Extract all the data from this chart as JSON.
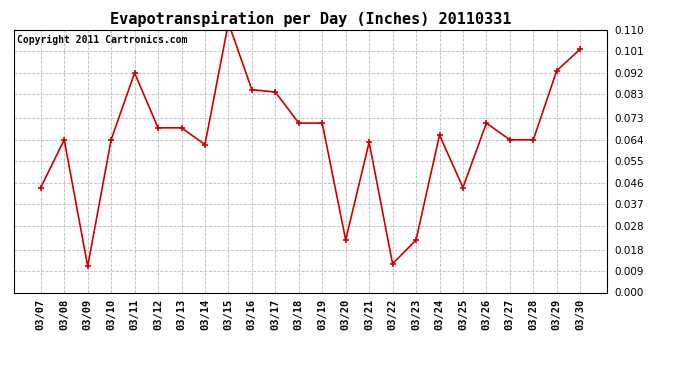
{
  "title": "Evapotranspiration per Day (Inches) 20110331",
  "copyright_text": "Copyright 2011 Cartronics.com",
  "dates": [
    "03/07",
    "03/08",
    "03/09",
    "03/10",
    "03/11",
    "03/12",
    "03/13",
    "03/14",
    "03/15",
    "03/16",
    "03/17",
    "03/18",
    "03/19",
    "03/20",
    "03/21",
    "03/22",
    "03/23",
    "03/24",
    "03/25",
    "03/26",
    "03/27",
    "03/28",
    "03/29",
    "03/30"
  ],
  "values": [
    0.044,
    0.064,
    0.011,
    0.064,
    0.092,
    0.069,
    0.069,
    0.062,
    0.113,
    0.085,
    0.084,
    0.071,
    0.071,
    0.022,
    0.063,
    0.012,
    0.022,
    0.066,
    0.044,
    0.071,
    0.064,
    0.064,
    0.093,
    0.102
  ],
  "line_color": "#CC0000",
  "marker": "+",
  "marker_size": 5,
  "marker_lw": 1.2,
  "line_width": 1.2,
  "ylim": [
    0.0,
    0.11
  ],
  "yticks": [
    0.0,
    0.009,
    0.018,
    0.028,
    0.037,
    0.046,
    0.055,
    0.064,
    0.073,
    0.083,
    0.092,
    0.101,
    0.11
  ],
  "background_color": "#FFFFFF",
  "plot_bg_color": "#FFFFFF",
  "grid_color": "#BBBBBB",
  "title_fontsize": 11,
  "tick_fontsize": 7.5,
  "copyright_fontsize": 7
}
